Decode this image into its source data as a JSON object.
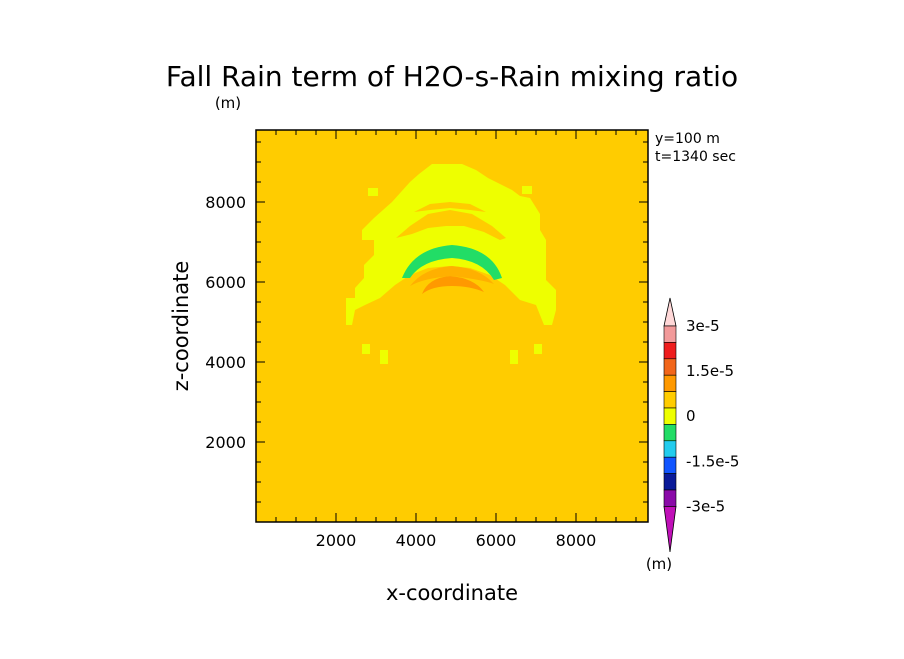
{
  "chart_data": {
    "type": "heatmap",
    "title": "Fall Rain term of H2O-s-Rain mixing ratio",
    "yunit": "(m)",
    "xlabel": "x-coordinate",
    "ylabel": "z-coordinate",
    "xlim": [
      0,
      9800
    ],
    "ylim": [
      0,
      9800
    ],
    "xticks": [
      2000,
      4000,
      6000,
      8000
    ],
    "yticks": [
      2000,
      4000,
      6000,
      8000
    ],
    "annotations": [
      "y=100 m",
      "t=1340 sec"
    ],
    "background_level": 0,
    "colorbar": {
      "unit": "(m)",
      "tick_labels": [
        "3e-5",
        "1.5e-5",
        "0",
        "-1.5e-5",
        "-3e-5"
      ],
      "tick_values": [
        3e-05,
        1.5e-05,
        0,
        -1.5e-05,
        -3e-05
      ],
      "colors_top_to_bottom": [
        "#ffd8d8",
        "#f29a9a",
        "#ee1c1c",
        "#f2661a",
        "#ff9900",
        "#ffcc00",
        "#eeff00",
        "#22dd66",
        "#22ccee",
        "#1155ff",
        "#0a1a99",
        "#8a0aa8",
        "#c010b8"
      ]
    },
    "field_regions": [
      {
        "level": "#eeff00",
        "value_range": [
          0,
          3.75e-06
        ],
        "description": "broad arch x 2250-7400, z 5000-9000"
      },
      {
        "level": "#22dd66",
        "value_range": [
          -7.5e-06,
          -3.75e-06
        ],
        "description": "arc x 3800-6200, z 6200-7000"
      },
      {
        "level": "#ff9900",
        "value_range": [
          3.75e-06,
          7.5e-06
        ],
        "description": "arc x 4150-5800, z 5800-6300"
      }
    ]
  }
}
